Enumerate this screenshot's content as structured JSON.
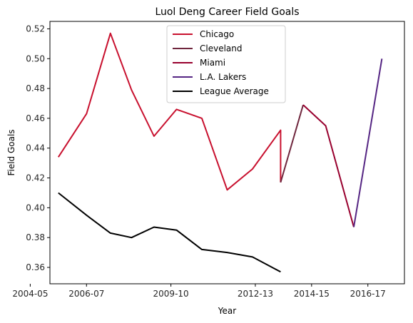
{
  "chart_data": {
    "type": "line",
    "title": "Luol Deng Career Field Goals",
    "xlabel": "Year",
    "ylabel": "Field Goals",
    "x_ticks": [
      "2004-05",
      "2006-07",
      "2009-10",
      "2012-13",
      "2014-15",
      "2016-17"
    ],
    "xlim": [
      2004.7,
      2017.3
    ],
    "ylim": [
      0.349,
      0.525
    ],
    "y_ticks": [
      "0.36",
      "0.38",
      "0.40",
      "0.42",
      "0.44",
      "0.46",
      "0.48",
      "0.50",
      "0.52"
    ],
    "legend_position": "upper-center",
    "series": [
      {
        "name": "Chicago",
        "color": "#c8102e",
        "x": [
          2005.0,
          2006.0,
          2006.85,
          2007.6,
          2008.4,
          2009.2,
          2010.1,
          2011.0,
          2011.9,
          2012.9,
          2012.9
        ],
        "y": [
          0.434,
          0.463,
          0.517,
          0.479,
          0.448,
          0.466,
          0.46,
          0.412,
          0.426,
          0.452,
          0.417
        ]
      },
      {
        "name": "Cleveland",
        "color": "#6f263d",
        "x": [
          2012.9,
          2013.7
        ],
        "y": [
          0.417,
          0.469
        ]
      },
      {
        "name": "Miami",
        "color": "#98002e",
        "x": [
          2013.7,
          2014.5,
          2015.5
        ],
        "y": [
          0.469,
          0.455,
          0.387
        ]
      },
      {
        "name": "L.A. Lakers",
        "color": "#552583",
        "x": [
          2015.5,
          2016.5
        ],
        "y": [
          0.387,
          0.5
        ]
      },
      {
        "name": "League Average",
        "color": "#000000",
        "x": [
          2005.0,
          2006.0,
          2006.85,
          2007.6,
          2008.4,
          2009.2,
          2010.1,
          2011.0,
          2011.9,
          2012.9
        ],
        "y": [
          0.41,
          0.395,
          0.383,
          0.38,
          0.387,
          0.385,
          0.372,
          0.37,
          0.367,
          0.357
        ]
      }
    ]
  }
}
